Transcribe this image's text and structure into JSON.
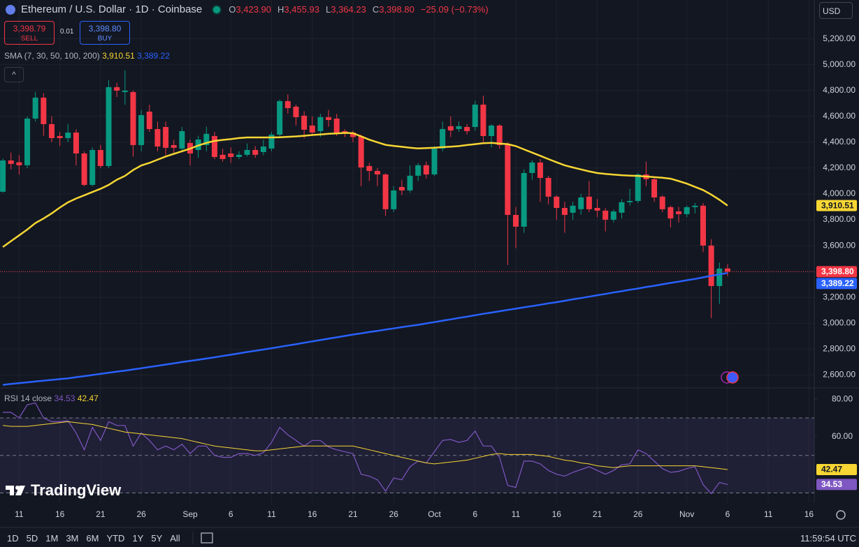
{
  "header": {
    "symbol": "Ethereum / U.S. Dollar · 1D · Coinbase",
    "o_label": "O",
    "o": "3,423.90",
    "h_label": "H",
    "h": "3,455.93",
    "l_label": "L",
    "l": "3,364.23",
    "c_label": "C",
    "c": "3,398.80",
    "change": "−25.09 (−0.73%)"
  },
  "trade": {
    "sell_price": "3,398.79",
    "sell": "SELL",
    "spread": "0.01",
    "buy_price": "3,398.80",
    "buy": "BUY"
  },
  "currency": "USD",
  "brand": "TradingView",
  "timeframes": [
    "1D",
    "5D",
    "1M",
    "3M",
    "6M",
    "YTD",
    "1Y",
    "5Y",
    "All"
  ],
  "clock": "11:59:54 UTC",
  "chart_data": [
    {
      "type": "candlestick",
      "categories": [
        null,
        null,
        "11",
        null,
        null,
        null,
        null,
        "16",
        null,
        null,
        null,
        null,
        "21",
        null,
        null,
        null,
        null,
        "26",
        null,
        null,
        null,
        null,
        null,
        "Sep",
        null,
        null,
        null,
        null,
        "6",
        null,
        null,
        null,
        null,
        "11",
        null,
        null,
        null,
        null,
        "16",
        null,
        null,
        null,
        null,
        "21",
        null,
        null,
        null,
        null,
        "26",
        null,
        null,
        null,
        null,
        "Oct",
        null,
        null,
        null,
        null,
        "6",
        null,
        null,
        null,
        null,
        "11",
        null,
        null,
        null,
        null,
        "16",
        null,
        null,
        null,
        null,
        "21",
        null,
        null,
        null,
        null,
        "26",
        null,
        null,
        null,
        null,
        null,
        "Nov",
        null,
        null,
        null,
        null,
        "6",
        null,
        null,
        null,
        null,
        "11",
        null,
        null,
        null,
        null,
        "16"
      ],
      "open": [
        4017,
        4259,
        4245,
        4222,
        4583,
        4745,
        4540,
        4448,
        4432,
        4475,
        4313,
        4070,
        4340,
        4216,
        4826,
        4788,
        4788,
        4378,
        4637,
        4502,
        4518,
        4378,
        4351,
        4394,
        4340,
        4378,
        4448,
        4303,
        4313,
        4286,
        4303,
        4340,
        4324,
        4351,
        4459,
        4718,
        4675,
        4605,
        4529,
        4486,
        4594,
        4583,
        4486,
        4475,
        4448,
        4216,
        4178,
        4151,
        3882,
        4054,
        4027,
        4141,
        4222,
        4151,
        4351,
        4524,
        4502,
        4518,
        4518,
        4691,
        4448,
        4529,
        4389,
        3838,
        3747,
        4162,
        4243,
        4124,
        3979,
        3892,
        3855,
        3882,
        3979,
        3892,
        3871,
        3801,
        3855,
        3936,
        3946,
        4151,
        4114,
        3979,
        3898,
        3865,
        3844,
        3898,
        3909,
        3601,
        3288,
        3423.9,
        null,
        null,
        null,
        null,
        null,
        null,
        null,
        null,
        null,
        null
      ],
      "high": [
        4275,
        4320,
        4300,
        4600,
        4790,
        4780,
        4600,
        4480,
        4540,
        4500,
        4330,
        4360,
        4380,
        4880,
        4860,
        4956,
        4800,
        4650,
        4690,
        4560,
        4560,
        4420,
        4520,
        4420,
        4450,
        4520,
        4480,
        4350,
        4360,
        4330,
        4390,
        4370,
        4420,
        4480,
        4730,
        4770,
        4690,
        4640,
        4600,
        4620,
        4650,
        4620,
        4500,
        4490,
        4460,
        4240,
        4200,
        4160,
        4060,
        4110,
        4220,
        4240,
        4250,
        4370,
        4560,
        4600,
        4560,
        4540,
        4720,
        4760,
        4540,
        4540,
        4400,
        3900,
        4190,
        4260,
        4270,
        4140,
        3990,
        3940,
        3940,
        4000,
        4100,
        3960,
        3890,
        3880,
        3960,
        4040,
        4160,
        4250,
        4130,
        3990,
        3910,
        3900,
        3910,
        3930,
        3930,
        3650,
        3470,
        3455.93,
        null,
        null,
        null,
        null,
        null,
        null,
        null,
        null,
        null,
        null
      ],
      "low": [
        4010,
        4190,
        4150,
        4200,
        4560,
        4450,
        4400,
        4370,
        4400,
        4220,
        4060,
        4060,
        4200,
        4200,
        4750,
        4690,
        4290,
        4330,
        4480,
        4330,
        4300,
        4320,
        4330,
        4220,
        4280,
        4330,
        4270,
        4250,
        4240,
        4270,
        4290,
        4280,
        4300,
        4330,
        4440,
        4620,
        4530,
        4430,
        4450,
        4440,
        4520,
        4450,
        4440,
        4400,
        4060,
        4100,
        4060,
        3830,
        3860,
        3990,
        4010,
        4100,
        4120,
        4140,
        4330,
        4440,
        4480,
        4460,
        4490,
        4400,
        4360,
        4350,
        3450,
        3580,
        3700,
        4110,
        3940,
        3920,
        3800,
        3700,
        3800,
        3840,
        3860,
        3820,
        3710,
        3780,
        3810,
        3910,
        3930,
        4060,
        3940,
        3860,
        3740,
        3780,
        3820,
        3850,
        3550,
        3040,
        3150,
        3364.23,
        null,
        null,
        null,
        null,
        null,
        null,
        null,
        null,
        null,
        null
      ],
      "close": [
        4259,
        4232,
        4222,
        4583,
        4745,
        4540,
        4432,
        4432,
        4475,
        4313,
        4070,
        4340,
        4216,
        4826,
        4799,
        4799,
        4378,
        4610,
        4502,
        4367,
        4357,
        4357,
        4486,
        4313,
        4421,
        4465,
        4286,
        4270,
        4286,
        4303,
        4340,
        4303,
        4367,
        4459,
        4718,
        4664,
        4594,
        4497,
        4475,
        4594,
        4572,
        4465,
        4470,
        4440,
        4205,
        4178,
        4151,
        3882,
        4027,
        4027,
        4141,
        4222,
        4151,
        4351,
        4502,
        4491,
        4524,
        4486,
        4691,
        4448,
        4529,
        4378,
        3838,
        3747,
        4162,
        4243,
        4124,
        3979,
        3892,
        3838,
        3909,
        3973,
        3882,
        3871,
        3801,
        3865,
        3936,
        3946,
        4151,
        4114,
        3973,
        3882,
        3811,
        3844,
        3898,
        3909,
        3601,
        3288,
        3423,
        3398.8,
        null,
        null,
        null,
        null,
        null,
        null,
        null,
        null,
        null,
        null
      ],
      "up_color": "#089981",
      "down_color": "#f23645",
      "ylim": [
        2500,
        5500
      ],
      "yticks": [
        {
          "value": 2600,
          "label": "2,600.00"
        },
        {
          "value": 2800,
          "label": "2,800.00"
        },
        {
          "value": 3000,
          "label": "3,000.00"
        },
        {
          "value": 3200,
          "label": "3,200.00"
        },
        {
          "value": 3400,
          "label": "3,400.00"
        },
        {
          "value": 3600,
          "label": "3,600.00"
        },
        {
          "value": 3800,
          "label": "3,800.00"
        },
        {
          "value": 4000,
          "label": "4,000.00"
        },
        {
          "value": 4200,
          "label": "4,200.00"
        },
        {
          "value": 4400,
          "label": "4,400.00"
        },
        {
          "value": 4600,
          "label": "4,600.00"
        },
        {
          "value": 4800,
          "label": "4,800.00"
        },
        {
          "value": 5000,
          "label": "5,000.00"
        },
        {
          "value": 5200,
          "label": "5,200.00"
        }
      ],
      "grid": true,
      "last_price": {
        "value": 3398.8,
        "label": "3,398.80"
      },
      "overlay_name": "SMA (7, 30, 50, 100, 200)",
      "series": [
        {
          "color": "#f7d633",
          "values": [
            3590,
            3635,
            3680,
            3725,
            3775,
            3810,
            3850,
            3895,
            3935,
            3965,
            3990,
            4015,
            4040,
            4070,
            4110,
            4140,
            4185,
            4220,
            4240,
            4265,
            4290,
            4310,
            4330,
            4350,
            4375,
            4395,
            4410,
            4418,
            4424,
            4432,
            4437,
            4437,
            4437,
            4437,
            4438,
            4442,
            4445,
            4450,
            4456,
            4460,
            4465,
            4468,
            4472,
            4470,
            4445,
            4420,
            4400,
            4380,
            4372,
            4365,
            4358,
            4352,
            4355,
            4358,
            4362,
            4366,
            4370,
            4378,
            4385,
            4392,
            4395,
            4390,
            4385,
            4370,
            4345,
            4320,
            4295,
            4270,
            4245,
            4222,
            4205,
            4190,
            4175,
            4162,
            4155,
            4150,
            4145,
            4142,
            4140,
            4135,
            4130,
            4125,
            4118,
            4100,
            4080,
            4055,
            4030,
            3995,
            3955,
            3910.51,
            null,
            null,
            null,
            null,
            null,
            null,
            null,
            null,
            null,
            null
          ],
          "last": {
            "value": 3910.51,
            "label": "3,910.51"
          }
        },
        {
          "color": "#2962ff",
          "values": [
            2524,
            2531,
            2537,
            2543,
            2550,
            2556,
            2562,
            2568,
            2574,
            2583,
            2591,
            2600,
            2609,
            2617,
            2626,
            2634,
            2643,
            2652,
            2662,
            2671,
            2681,
            2690,
            2700,
            2709,
            2718,
            2727,
            2737,
            2747,
            2757,
            2767,
            2778,
            2787,
            2797,
            2807,
            2817,
            2828,
            2838,
            2849,
            2860,
            2870,
            2881,
            2891,
            2902,
            2913,
            2922,
            2932,
            2941,
            2951,
            2960,
            2970,
            2979,
            2988,
            2999,
            3009,
            3020,
            3030,
            3041,
            3051,
            3062,
            3073,
            3083,
            3093,
            3103,
            3113,
            3123,
            3133,
            3143,
            3154,
            3163,
            3174,
            3185,
            3195,
            3206,
            3217,
            3227,
            3238,
            3248,
            3259,
            3269,
            3280,
            3290,
            3301,
            3312,
            3322,
            3333,
            3343,
            3355,
            3367,
            3378,
            3389.22,
            null,
            null,
            null,
            null,
            null,
            null,
            null,
            null,
            null,
            null
          ],
          "last": {
            "value": 3389.22,
            "label": "3,389.22"
          }
        }
      ]
    },
    {
      "type": "line",
      "title": "RSI 14 close",
      "series": [
        {
          "color": "#7e57c2",
          "values": [
            73,
            73,
            70,
            77,
            78,
            70,
            68,
            68,
            68.5,
            62,
            53,
            65,
            58,
            68,
            66,
            66,
            55,
            62,
            58,
            53,
            55,
            53,
            56,
            51,
            55,
            55,
            50,
            49,
            49,
            51,
            51,
            50,
            51.5,
            57,
            65,
            61,
            58,
            55,
            58,
            58,
            54.5,
            53,
            52,
            51,
            40,
            39,
            37,
            31,
            38,
            37,
            44,
            47,
            46,
            52,
            58,
            58.5,
            57,
            58,
            63,
            55,
            55,
            49,
            34,
            33,
            47,
            47,
            45.5,
            42,
            40,
            39,
            41,
            42.5,
            44,
            42,
            40,
            42,
            45,
            45.5,
            53,
            51,
            47,
            43,
            41,
            41.5,
            43,
            44,
            34.4,
            29.6,
            35.6,
            34.53,
            null,
            null,
            null,
            null,
            null,
            null,
            null,
            null,
            null,
            null
          ],
          "last": {
            "value": 34.53,
            "label": "34.53"
          }
        },
        {
          "color": "#f7d633",
          "values": [
            66,
            65.5,
            65.5,
            65.5,
            66,
            66.5,
            67,
            67.5,
            68,
            67.5,
            67,
            66.5,
            65.5,
            64.5,
            63.5,
            62.5,
            62,
            61.5,
            61,
            60.5,
            60,
            59.5,
            59,
            58,
            57,
            56,
            55,
            54.5,
            54,
            53.5,
            53,
            52.5,
            52.5,
            53,
            53.5,
            54,
            54.5,
            55,
            55,
            55,
            55,
            55,
            55,
            55,
            54,
            53,
            52,
            51,
            50,
            49,
            48,
            47,
            46,
            45.5,
            46,
            46.5,
            47,
            47.5,
            48.5,
            49.5,
            50.5,
            51,
            50.5,
            50.5,
            50.5,
            50.5,
            50,
            49.5,
            48.5,
            47.5,
            47,
            46,
            45.5,
            44.5,
            44,
            43.5,
            44,
            44.5,
            44.5,
            44.5,
            44.5,
            44.5,
            44.5,
            44.5,
            44.5,
            44.5,
            44,
            43.5,
            43,
            42.47,
            null,
            null,
            null,
            null,
            null,
            null,
            null,
            null,
            null,
            null
          ],
          "last": {
            "value": 42.47,
            "label": "42.47"
          }
        }
      ],
      "ylim": [
        25,
        86
      ],
      "yticks": [
        {
          "value": 60,
          "label": "60.00"
        },
        {
          "value": 80,
          "label": "80.00"
        }
      ],
      "bands": [
        30,
        50,
        70
      ],
      "band_fill": "#7e57c2"
    }
  ]
}
